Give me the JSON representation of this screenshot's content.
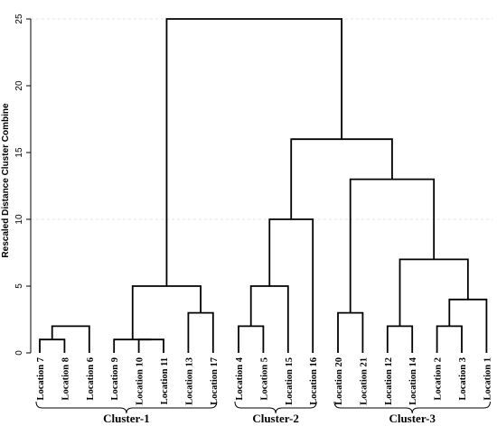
{
  "chart_data": {
    "type": "dendrogram",
    "ylabel": "Rescaled Distance Cluster Combine",
    "ylim": [
      0,
      25
    ],
    "yticks": [
      0,
      5,
      10,
      15,
      20,
      25
    ],
    "grid": "dashed horizontal at 10 and 25",
    "leaves": [
      "Location 7",
      "Location 8",
      "Location 6",
      "Location 9",
      "Location 10",
      "Location 11",
      "Location 13",
      "Location 17",
      "Location 4",
      "Location 5",
      "Location 15",
      "Location 16",
      "Location 20",
      "Location 21",
      "Location 12",
      "Location 14",
      "Location 2",
      "Location 3",
      "Location 1"
    ],
    "merges": [
      {
        "children": [
          "Location 7",
          "Location 8"
        ],
        "height": 1
      },
      {
        "children": [
          "Location 10",
          "Location 11"
        ],
        "height": 1
      },
      {
        "children": [
          "Location 9",
          "Location 10"
        ],
        "height": 1
      },
      {
        "children": [
          "Location 4",
          "Location 5"
        ],
        "height": 2
      },
      {
        "children": [
          "Location 12",
          "Location 14"
        ],
        "height": 2
      },
      {
        "children": [
          "Location 2",
          "Location 3"
        ],
        "height": 2
      },
      {
        "children": [
          "Location 8",
          "Location 6"
        ],
        "height": 2
      },
      {
        "children": [
          "Location 13",
          "Location 17"
        ],
        "height": 3
      },
      {
        "children": [
          "Location 20",
          "Location 21"
        ],
        "height": 3
      },
      {
        "children": [
          "Location 3",
          "Location 1"
        ],
        "height": 4
      },
      {
        "children": [
          "Location 10",
          "Location 13"
        ],
        "height": 5
      },
      {
        "children": [
          "Location 5",
          "Location 15"
        ],
        "height": 5
      },
      {
        "children": [
          "Location 14",
          "Location 3"
        ],
        "height": 7
      },
      {
        "children": [
          "Location 15",
          "Location 16"
        ],
        "height": 10
      },
      {
        "children": [
          "Location 21",
          "Location 14"
        ],
        "height": 13
      },
      {
        "children": [
          "Location 15",
          "Location 21"
        ],
        "height": 16
      },
      {
        "children": [
          "Location 10",
          "Location 21"
        ],
        "height": 25
      }
    ],
    "clusters": [
      {
        "label": "Cluster-1",
        "from": "Location 7",
        "to": "Location 17"
      },
      {
        "label": "Cluster-2",
        "from": "Location 4",
        "to": "Location 16"
      },
      {
        "label": "Cluster-3",
        "from": "Location 20",
        "to": "Location 1"
      }
    ]
  }
}
